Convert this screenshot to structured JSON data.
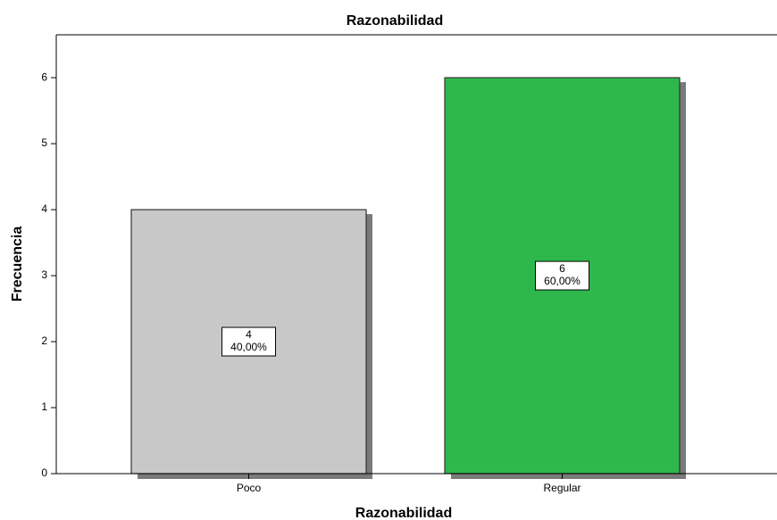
{
  "chart_data": {
    "type": "bar",
    "title": "Razonabilidad",
    "x_label": "Razonabilidad",
    "y_label": "Frecuencia",
    "categories": [
      "Poco",
      "Regular"
    ],
    "values": [
      4,
      6
    ],
    "colors": [
      "#c8c8c8",
      "#2eb84b"
    ],
    "percent_values": [
      40,
      60
    ],
    "percent_labels": [
      "40,00%",
      "60,00%"
    ],
    "ylim": [
      0,
      6.65
    ],
    "yticks": [
      0,
      1,
      2,
      3,
      4,
      5,
      6
    ]
  }
}
